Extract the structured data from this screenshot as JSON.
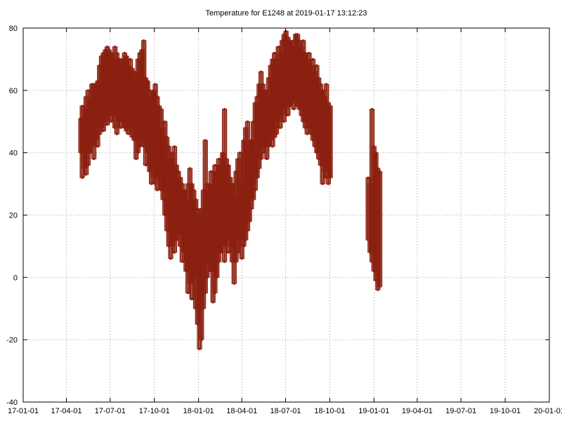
{
  "chart_data": {
    "type": "scatter",
    "title": "Temperature for E1248 at 2019-01-17 13:12:23",
    "xlabel": "",
    "ylabel": "",
    "x_axis": "date",
    "xlim": [
      "2017-01-01",
      "2020-01-01"
    ],
    "ylim": [
      -40,
      80
    ],
    "grid": true,
    "legend": "none",
    "x_ticks": [
      {
        "date": "2017-01-01",
        "label": "17-01-01"
      },
      {
        "date": "2017-04-01",
        "label": "17-04-01"
      },
      {
        "date": "2017-07-01",
        "label": "17-07-01"
      },
      {
        "date": "2017-10-01",
        "label": "17-10-01"
      },
      {
        "date": "2018-01-01",
        "label": "18-01-01"
      },
      {
        "date": "2018-04-01",
        "label": "18-04-01"
      },
      {
        "date": "2018-07-01",
        "label": "18-07-01"
      },
      {
        "date": "2018-10-01",
        "label": "18-10-01"
      },
      {
        "date": "2019-01-01",
        "label": "19-01-01"
      },
      {
        "date": "2019-04-01",
        "label": "19-04-01"
      },
      {
        "date": "2019-07-01",
        "label": "19-07-01"
      },
      {
        "date": "2019-10-01",
        "label": "19-10-01"
      },
      {
        "date": "2020-01-01",
        "label": "20-01-01"
      }
    ],
    "y_ticks": [
      -40,
      -20,
      0,
      20,
      40,
      60,
      80
    ],
    "series_color": "#8b2010",
    "series": [
      {
        "name": "",
        "color": "#8b2010",
        "points": [
          [
            "2017-05-01",
            40,
            51
          ],
          [
            "2017-05-04",
            32,
            55
          ],
          [
            "2017-05-08",
            35,
            54
          ],
          [
            "2017-05-12",
            33,
            58
          ],
          [
            "2017-05-16",
            36,
            60
          ],
          [
            "2017-05-20",
            40,
            57
          ],
          [
            "2017-05-24",
            42,
            62
          ],
          [
            "2017-05-28",
            38,
            62
          ],
          [
            "2017-06-01",
            44,
            62
          ],
          [
            "2017-06-05",
            42,
            63
          ],
          [
            "2017-06-09",
            46,
            68
          ],
          [
            "2017-06-13",
            48,
            71
          ],
          [
            "2017-06-17",
            47,
            72
          ],
          [
            "2017-06-21",
            50,
            73
          ],
          [
            "2017-06-25",
            49,
            74
          ],
          [
            "2017-06-29",
            52,
            73
          ],
          [
            "2017-07-03",
            50,
            72
          ],
          [
            "2017-07-07",
            52,
            70
          ],
          [
            "2017-07-11",
            48,
            74
          ],
          [
            "2017-07-15",
            46,
            72
          ],
          [
            "2017-07-19",
            50,
            70
          ],
          [
            "2017-07-23",
            48,
            70
          ],
          [
            "2017-07-27",
            50,
            69
          ],
          [
            "2017-07-31",
            48,
            72
          ],
          [
            "2017-08-04",
            47,
            71
          ],
          [
            "2017-08-08",
            46,
            68
          ],
          [
            "2017-08-12",
            48,
            70
          ],
          [
            "2017-08-16",
            45,
            67
          ],
          [
            "2017-08-20",
            44,
            66
          ],
          [
            "2017-08-24",
            38,
            64
          ],
          [
            "2017-08-28",
            40,
            70
          ],
          [
            "2017-09-01",
            42,
            72
          ],
          [
            "2017-09-05",
            44,
            73
          ],
          [
            "2017-09-09",
            42,
            76
          ],
          [
            "2017-09-13",
            36,
            64
          ],
          [
            "2017-09-17",
            40,
            63
          ],
          [
            "2017-09-21",
            34,
            60
          ],
          [
            "2017-09-25",
            30,
            58
          ],
          [
            "2017-09-29",
            32,
            60
          ],
          [
            "2017-10-03",
            30,
            62
          ],
          [
            "2017-10-07",
            28,
            58
          ],
          [
            "2017-10-11",
            32,
            55
          ],
          [
            "2017-10-15",
            28,
            54
          ],
          [
            "2017-10-19",
            25,
            48
          ],
          [
            "2017-10-23",
            20,
            50
          ],
          [
            "2017-10-27",
            15,
            45
          ],
          [
            "2017-10-31",
            10,
            42
          ],
          [
            "2017-11-04",
            6,
            38
          ],
          [
            "2017-11-08",
            10,
            40
          ],
          [
            "2017-11-12",
            8,
            42
          ],
          [
            "2017-11-16",
            12,
            36
          ],
          [
            "2017-11-20",
            14,
            34
          ],
          [
            "2017-11-24",
            10,
            32
          ],
          [
            "2017-11-28",
            5,
            30
          ],
          [
            "2017-12-02",
            8,
            28
          ],
          [
            "2017-12-06",
            2,
            25
          ],
          [
            "2017-12-10",
            -5,
            30
          ],
          [
            "2017-12-14",
            -2,
            35
          ],
          [
            "2017-12-18",
            -7,
            30
          ],
          [
            "2017-12-22",
            0,
            28
          ],
          [
            "2017-12-26",
            -10,
            25
          ],
          [
            "2017-12-30",
            -15,
            22
          ],
          [
            "2018-01-03",
            -23,
            20
          ],
          [
            "2018-01-07",
            -20,
            22
          ],
          [
            "2018-01-11",
            -10,
            28
          ],
          [
            "2018-01-15",
            -5,
            44
          ],
          [
            "2018-01-19",
            0,
            30
          ],
          [
            "2018-01-23",
            5,
            28
          ],
          [
            "2018-01-27",
            2,
            34
          ],
          [
            "2018-01-31",
            -8,
            30
          ],
          [
            "2018-02-04",
            -5,
            36
          ],
          [
            "2018-02-08",
            0,
            34
          ],
          [
            "2018-02-12",
            5,
            38
          ],
          [
            "2018-02-16",
            8,
            36
          ],
          [
            "2018-02-20",
            10,
            40
          ],
          [
            "2018-02-24",
            5,
            54
          ],
          [
            "2018-02-28",
            12,
            38
          ],
          [
            "2018-03-04",
            8,
            36
          ],
          [
            "2018-03-08",
            10,
            32
          ],
          [
            "2018-03-12",
            5,
            30
          ],
          [
            "2018-03-16",
            -2,
            26
          ],
          [
            "2018-03-20",
            5,
            34
          ],
          [
            "2018-03-24",
            8,
            38
          ],
          [
            "2018-03-28",
            12,
            40
          ],
          [
            "2018-04-01",
            6,
            30
          ],
          [
            "2018-04-05",
            10,
            44
          ],
          [
            "2018-04-09",
            12,
            48
          ],
          [
            "2018-04-13",
            15,
            50
          ],
          [
            "2018-04-17",
            18,
            42
          ],
          [
            "2018-04-21",
            22,
            44
          ],
          [
            "2018-04-25",
            25,
            50
          ],
          [
            "2018-04-29",
            28,
            56
          ],
          [
            "2018-05-03",
            32,
            58
          ],
          [
            "2018-05-07",
            35,
            62
          ],
          [
            "2018-05-11",
            38,
            66
          ],
          [
            "2018-05-15",
            40,
            62
          ],
          [
            "2018-05-19",
            42,
            60
          ],
          [
            "2018-05-23",
            38,
            58
          ],
          [
            "2018-05-27",
            42,
            64
          ],
          [
            "2018-05-31",
            44,
            68
          ],
          [
            "2018-06-04",
            42,
            70
          ],
          [
            "2018-06-08",
            45,
            72
          ],
          [
            "2018-06-12",
            46,
            70
          ],
          [
            "2018-06-16",
            50,
            74
          ],
          [
            "2018-06-20",
            48,
            72
          ],
          [
            "2018-06-24",
            52,
            76
          ],
          [
            "2018-06-28",
            50,
            78
          ],
          [
            "2018-07-02",
            54,
            79
          ],
          [
            "2018-07-06",
            52,
            77
          ],
          [
            "2018-07-10",
            55,
            76
          ],
          [
            "2018-07-14",
            56,
            74
          ],
          [
            "2018-07-18",
            54,
            76
          ],
          [
            "2018-07-22",
            56,
            78
          ],
          [
            "2018-07-26",
            55,
            78
          ],
          [
            "2018-07-30",
            54,
            76
          ],
          [
            "2018-08-03",
            52,
            74
          ],
          [
            "2018-08-07",
            50,
            76
          ],
          [
            "2018-08-11",
            48,
            72
          ],
          [
            "2018-08-15",
            46,
            70
          ],
          [
            "2018-08-19",
            48,
            72
          ],
          [
            "2018-08-23",
            46,
            68
          ],
          [
            "2018-08-27",
            44,
            70
          ],
          [
            "2018-08-31",
            42,
            66
          ],
          [
            "2018-09-04",
            40,
            68
          ],
          [
            "2018-09-08",
            38,
            64
          ],
          [
            "2018-09-12",
            36,
            62
          ],
          [
            "2018-09-16",
            30,
            60
          ],
          [
            "2018-09-20",
            34,
            58
          ],
          [
            "2018-09-24",
            32,
            62
          ],
          [
            "2018-09-28",
            30,
            56
          ],
          [
            "2018-10-02",
            32,
            55
          ],
          [
            "2018-12-20",
            12,
            32
          ],
          [
            "2018-12-24",
            8,
            30
          ],
          [
            "2018-12-28",
            5,
            54
          ],
          [
            "2019-01-01",
            2,
            42
          ],
          [
            "2019-01-05",
            -1,
            40
          ],
          [
            "2019-01-09",
            -4,
            35
          ],
          [
            "2019-01-13",
            -3,
            34
          ]
        ]
      }
    ]
  }
}
